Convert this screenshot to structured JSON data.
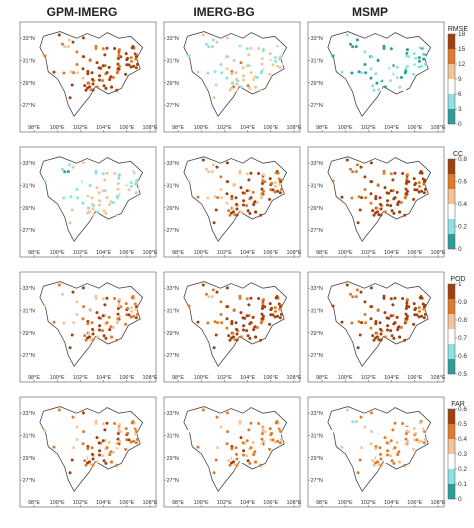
{
  "columns": [
    "GPM-IMERG",
    "IMERG-BG",
    "MSMP"
  ],
  "lat_labels": [
    "33°N",
    "31°N",
    "29°N",
    "27°N"
  ],
  "lon_labels": [
    "98°E",
    "100°E",
    "102°E",
    "104°E",
    "106°E",
    "108°E"
  ],
  "rows": [
    {
      "metric": "RMSE",
      "ticks": [
        "18",
        "15",
        "12",
        "9",
        "6",
        "3",
        "0"
      ],
      "colors": [
        "#2b9d9d",
        "#8ee1e1",
        "#ffffff",
        "#f4c397",
        "#e07a2a",
        "#a0400e"
      ],
      "levels": [
        0.82,
        0.4,
        0.18
      ]
    },
    {
      "metric": "CC",
      "ticks": [
        "0.8",
        "0.6",
        "0.4",
        "0.2",
        "0"
      ],
      "colors": [
        "#2b9d9d",
        "#8ee1e1",
        "#ffffff",
        "#f4c397",
        "#e07a2a",
        "#a0400e"
      ],
      "levels": [
        0.35,
        0.72,
        0.88
      ]
    },
    {
      "metric": "POD",
      "ticks": [
        "1",
        "0.9",
        "0.8",
        "0.7",
        "0.6",
        "0.5"
      ],
      "colors": [
        "#2b9d9d",
        "#8ee1e1",
        "#ffffff",
        "#f4c397",
        "#e07a2a",
        "#a0400e"
      ],
      "levels": [
        0.66,
        0.84,
        0.93
      ]
    },
    {
      "metric": "FAR",
      "ticks": [
        "0.6",
        "0.5",
        "0.4",
        "0.3",
        "0.2",
        "0.1",
        "0"
      ],
      "colors": [
        "#2b9d9d",
        "#8ee1e1",
        "#ffffff",
        "#f4c397",
        "#e07a2a",
        "#a0400e"
      ],
      "levels": [
        0.62,
        0.58,
        0.52
      ]
    }
  ]
}
